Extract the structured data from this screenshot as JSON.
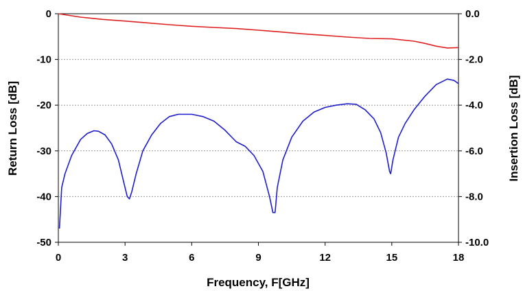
{
  "chart_data": {
    "type": "line",
    "xlabel": "Frequency, F[GHz]",
    "ylabel_left": "Return Loss [dB]",
    "ylabel_right": "Insertion Loss [dB]",
    "xlim": [
      0,
      18
    ],
    "ylim_left": [
      -50,
      0
    ],
    "ylim_right": [
      -10,
      0
    ],
    "x_ticks": [
      "0",
      "3",
      "6",
      "9",
      "12",
      "15",
      "18"
    ],
    "y_left_ticks": [
      "0",
      "-10",
      "-20",
      "-30",
      "-40",
      "-50"
    ],
    "y_right_ticks": [
      "0.0",
      "-2.0",
      "-4.0",
      "-6.0",
      "-8.0",
      "-10.0"
    ],
    "grid": "horizontal dotted",
    "series": [
      {
        "axis": "right",
        "color": "#e02020",
        "points": [
          [
            0,
            0
          ],
          [
            1,
            -0.15
          ],
          [
            2,
            -0.25
          ],
          [
            3,
            -0.32
          ],
          [
            4,
            -0.4
          ],
          [
            5,
            -0.48
          ],
          [
            6,
            -0.55
          ],
          [
            7,
            -0.6
          ],
          [
            8,
            -0.65
          ],
          [
            9,
            -0.72
          ],
          [
            10,
            -0.8
          ],
          [
            11,
            -0.88
          ],
          [
            12,
            -0.95
          ],
          [
            13,
            -1.02
          ],
          [
            14,
            -1.08
          ],
          [
            15,
            -1.1
          ],
          [
            16,
            -1.2
          ],
          [
            16.5,
            -1.3
          ],
          [
            17,
            -1.42
          ],
          [
            17.5,
            -1.5
          ],
          [
            18,
            -1.48
          ]
        ]
      },
      {
        "axis": "left",
        "color": "#1c1ccc",
        "points": [
          [
            0.05,
            -47
          ],
          [
            0.15,
            -38
          ],
          [
            0.3,
            -35
          ],
          [
            0.6,
            -31
          ],
          [
            1.0,
            -27.5
          ],
          [
            1.3,
            -26.2
          ],
          [
            1.6,
            -25.6
          ],
          [
            1.8,
            -25.7
          ],
          [
            2.1,
            -26.5
          ],
          [
            2.4,
            -28.5
          ],
          [
            2.7,
            -32
          ],
          [
            2.95,
            -37
          ],
          [
            3.1,
            -40
          ],
          [
            3.2,
            -40.5
          ],
          [
            3.3,
            -39
          ],
          [
            3.5,
            -35
          ],
          [
            3.8,
            -30
          ],
          [
            4.2,
            -26.5
          ],
          [
            4.6,
            -24
          ],
          [
            5.0,
            -22.5
          ],
          [
            5.4,
            -22
          ],
          [
            6.0,
            -22
          ],
          [
            6.5,
            -22.5
          ],
          [
            7.0,
            -23.5
          ],
          [
            7.5,
            -25.5
          ],
          [
            8.0,
            -28
          ],
          [
            8.4,
            -29
          ],
          [
            8.8,
            -31
          ],
          [
            9.2,
            -34.5
          ],
          [
            9.5,
            -40
          ],
          [
            9.65,
            -43.5
          ],
          [
            9.75,
            -43.5
          ],
          [
            9.85,
            -38
          ],
          [
            10.1,
            -32
          ],
          [
            10.5,
            -27
          ],
          [
            11.0,
            -23.5
          ],
          [
            11.5,
            -21.5
          ],
          [
            12.0,
            -20.5
          ],
          [
            12.5,
            -20
          ],
          [
            13.0,
            -19.7
          ],
          [
            13.4,
            -19.8
          ],
          [
            13.8,
            -21
          ],
          [
            14.2,
            -23
          ],
          [
            14.5,
            -26
          ],
          [
            14.75,
            -30.5
          ],
          [
            14.9,
            -34.5
          ],
          [
            14.95,
            -35
          ],
          [
            15.05,
            -32
          ],
          [
            15.3,
            -27
          ],
          [
            15.6,
            -24
          ],
          [
            16.0,
            -21
          ],
          [
            16.5,
            -18
          ],
          [
            17.0,
            -15.5
          ],
          [
            17.5,
            -14.3
          ],
          [
            17.8,
            -14.6
          ],
          [
            18.0,
            -15.3
          ]
        ]
      }
    ]
  }
}
